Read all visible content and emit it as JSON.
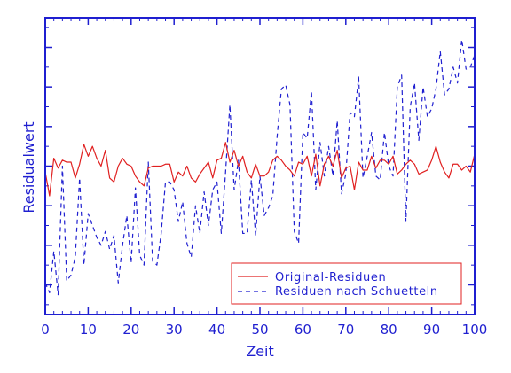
{
  "chart_data": {
    "type": "line",
    "xlabel": "Zeit",
    "ylabel": "Residualwert",
    "xlim": [
      0,
      100
    ],
    "ylim": [
      -7.5,
      7.5
    ],
    "x_ticks": [
      0,
      10,
      20,
      30,
      40,
      50,
      60,
      70,
      80,
      90,
      100
    ],
    "y_ticks": [
      -6,
      -4,
      -2,
      0,
      2,
      4,
      6
    ],
    "y_tick_labels_shown": false,
    "grid": false,
    "legend_position": "bottom-right",
    "x": [
      0,
      1,
      2,
      3,
      4,
      5,
      6,
      7,
      8,
      9,
      10,
      11,
      12,
      13,
      14,
      15,
      16,
      17,
      18,
      19,
      20,
      21,
      22,
      23,
      24,
      25,
      26,
      27,
      28,
      29,
      30,
      31,
      32,
      33,
      34,
      35,
      36,
      37,
      38,
      39,
      40,
      41,
      42,
      43,
      44,
      45,
      46,
      47,
      48,
      49,
      50,
      51,
      52,
      53,
      54,
      55,
      56,
      57,
      58,
      59,
      60,
      61,
      62,
      63,
      64,
      65,
      66,
      67,
      68,
      69,
      70,
      71,
      72,
      73,
      74,
      75,
      76,
      77,
      78,
      79,
      80,
      81,
      82,
      83,
      84,
      85,
      86,
      87,
      88,
      89,
      90,
      91,
      92,
      93,
      94,
      95,
      96,
      97,
      98,
      99,
      100
    ],
    "series": [
      {
        "name": "Original-Residuen",
        "color": "#e02020",
        "dash": "solid",
        "values": [
          -0.3,
          -1.5,
          0.4,
          -0.1,
          0.3,
          0.2,
          0.2,
          -0.6,
          0.1,
          1.1,
          0.5,
          1.0,
          0.4,
          0.0,
          0.8,
          -0.6,
          -0.8,
          0.0,
          0.4,
          0.1,
          0.0,
          -0.5,
          -0.8,
          -1.0,
          -0.1,
          0.0,
          0.0,
          0.0,
          0.1,
          0.1,
          -0.8,
          -0.3,
          -0.5,
          0.0,
          -0.6,
          -0.8,
          -0.4,
          -0.1,
          0.2,
          -0.6,
          0.3,
          0.4,
          1.2,
          0.2,
          0.8,
          0.0,
          0.5,
          -0.3,
          -0.6,
          0.1,
          -0.5,
          -0.5,
          -0.3,
          0.3,
          0.5,
          0.3,
          0.0,
          -0.2,
          -0.5,
          0.2,
          0.1,
          0.5,
          -0.5,
          0.6,
          -1.0,
          0.1,
          0.5,
          0.0,
          0.8,
          -0.6,
          -0.1,
          0.0,
          -1.2,
          0.2,
          -0.2,
          -0.2,
          0.5,
          -0.1,
          0.3,
          0.3,
          0.1,
          0.5,
          -0.4,
          -0.2,
          0.1,
          0.3,
          0.1,
          -0.4,
          -0.3,
          -0.2,
          0.3,
          1.0,
          0.2,
          -0.3,
          -0.6,
          0.1,
          0.1,
          -0.2,
          0.0,
          -0.3,
          0.6
        ]
      },
      {
        "name": "Residuen nach Schuetteln",
        "color": "#1f1fd0",
        "dash": "dashed",
        "values": [
          -5.9,
          -6.4,
          -4.3,
          -6.5,
          0.0,
          -5.8,
          -5.5,
          -4.6,
          -0.6,
          -5.0,
          -2.4,
          -3.0,
          -3.6,
          -4.0,
          -3.3,
          -4.2,
          -3.5,
          -5.9,
          -4.0,
          -2.5,
          -4.9,
          -1.1,
          -4.5,
          -5.0,
          0.2,
          -4.8,
          -5.0,
          -3.4,
          -0.8,
          -0.8,
          -1.2,
          -2.8,
          -1.8,
          -3.9,
          -4.6,
          -2.0,
          -3.4,
          -1.3,
          -3.0,
          -1.2,
          -0.8,
          -3.4,
          -0.3,
          3.1,
          -1.2,
          0.3,
          -3.4,
          -3.4,
          -0.7,
          -3.5,
          -0.5,
          -2.5,
          -2.1,
          -1.5,
          1.5,
          3.9,
          4.1,
          3.1,
          -3.3,
          -3.9,
          1.7,
          1.4,
          3.8,
          -1.2,
          1.2,
          -0.5,
          1.0,
          -0.5,
          2.3,
          -1.4,
          -0.4,
          2.7,
          2.5,
          4.5,
          -0.6,
          0.5,
          1.7,
          -0.5,
          -0.7,
          1.7,
          0.0,
          -0.5,
          4.0,
          4.6,
          -2.8,
          3.0,
          4.2,
          1.3,
          4.0,
          2.5,
          2.9,
          3.9,
          5.8,
          3.6,
          3.9,
          5.0,
          4.2,
          6.4,
          4.9,
          5.0,
          5.6
        ]
      }
    ]
  }
}
